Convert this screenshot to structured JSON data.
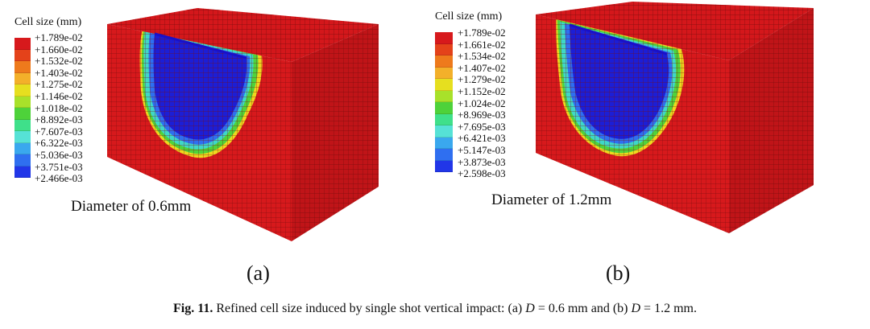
{
  "panels": [
    {
      "legend_title": "Cell size (mm)",
      "legend_values": [
        "+1.789e-02",
        "+1.660e-02",
        "+1.532e-02",
        "+1.403e-02",
        "+1.275e-02",
        "+1.146e-02",
        "+1.018e-02",
        "+8.892e-03",
        "+7.607e-03",
        "+6.322e-03",
        "+5.036e-03",
        "+3.751e-03",
        "+2.466e-03"
      ],
      "diameter_label": "Diameter of 0.6mm",
      "panel_letter": "(a)"
    },
    {
      "legend_title": "Cell size (mm)",
      "legend_values": [
        "+1.789e-02",
        "+1.661e-02",
        "+1.534e-02",
        "+1.407e-02",
        "+1.279e-02",
        "+1.152e-02",
        "+1.024e-02",
        "+8.969e-03",
        "+7.695e-03",
        "+6.421e-03",
        "+5.147e-03",
        "+3.873e-03",
        "+2.598e-03"
      ],
      "diameter_label": "Diameter of 1.2mm",
      "panel_letter": "(b)"
    }
  ],
  "colors": [
    "#d7191c",
    "#e4421a",
    "#ee7a1c",
    "#f3b02a",
    "#e6df1f",
    "#a8e12a",
    "#4ed23a",
    "#3fe08a",
    "#56e2d6",
    "#3aa8ee",
    "#2f6ff0",
    "#2136e8",
    "#1a10c8"
  ],
  "caption": {
    "fig_label": "Fig. 11.",
    "text_1": "Refined cell size induced by single shot vertical impact: (a) ",
    "var_1": "D",
    "text_2": " = 0.6 mm and (b) ",
    "var_2": "D",
    "text_3": " = 1.2 mm."
  }
}
